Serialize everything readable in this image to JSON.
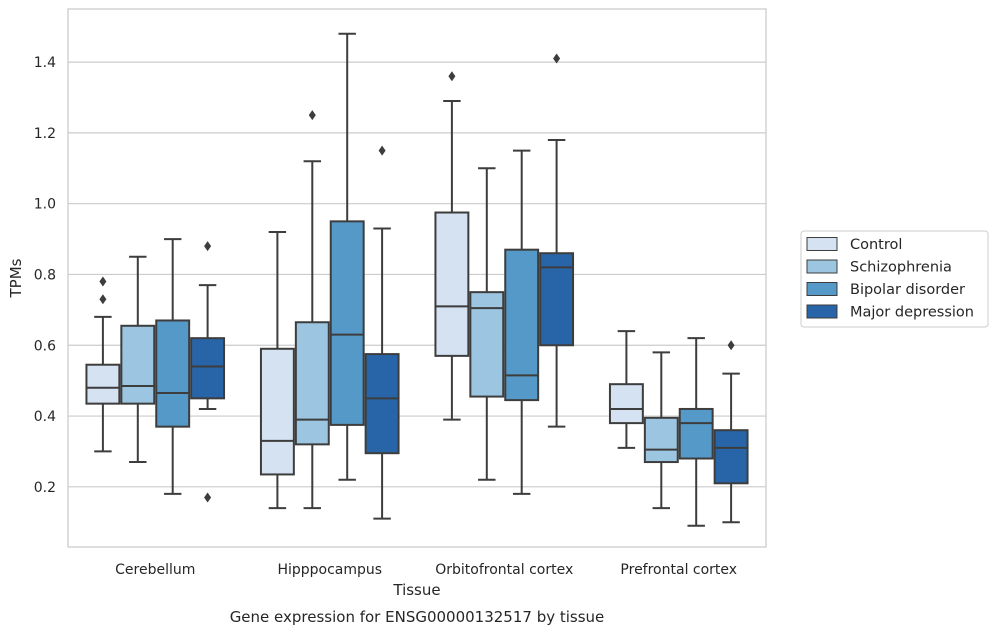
{
  "chart_data": {
    "type": "box",
    "caption": "Gene expression for ENSG00000132517 by tissue",
    "xlabel": "Tissue",
    "ylabel": "TPMs",
    "ylim": [
      0.03,
      1.55
    ],
    "yticks": [
      0.2,
      0.4,
      0.6,
      0.8,
      1.0,
      1.2,
      1.4
    ],
    "ytick_labels": [
      "0.2",
      "0.4",
      "0.6",
      "0.8",
      "1.0",
      "1.2",
      "1.4"
    ],
    "grid": "horizontal",
    "legend_position": "right",
    "categories": [
      "Cerebellum",
      "Hipppocampus",
      "Orbitofrontal cortex",
      "Prefrontal cortex"
    ],
    "series": [
      {
        "name": "Control",
        "color": "#d4e2f1",
        "boxes": [
          {
            "whislo": 0.3,
            "q1": 0.435,
            "med": 0.48,
            "q3": 0.545,
            "whishi": 0.68,
            "fliers": [
              0.73,
              0.78
            ]
          },
          {
            "whislo": 0.14,
            "q1": 0.235,
            "med": 0.33,
            "q3": 0.59,
            "whishi": 0.92,
            "fliers": []
          },
          {
            "whislo": 0.39,
            "q1": 0.57,
            "med": 0.71,
            "q3": 0.975,
            "whishi": 1.29,
            "fliers": [
              1.36
            ]
          },
          {
            "whislo": 0.31,
            "q1": 0.38,
            "med": 0.42,
            "q3": 0.49,
            "whishi": 0.64,
            "fliers": []
          }
        ]
      },
      {
        "name": "Schizophrenia",
        "color": "#9bc5e0",
        "boxes": [
          {
            "whislo": 0.27,
            "q1": 0.435,
            "med": 0.485,
            "q3": 0.655,
            "whishi": 0.85,
            "fliers": []
          },
          {
            "whislo": 0.14,
            "q1": 0.32,
            "med": 0.39,
            "q3": 0.665,
            "whishi": 1.12,
            "fliers": [
              1.25
            ]
          },
          {
            "whislo": 0.22,
            "q1": 0.455,
            "med": 0.705,
            "q3": 0.75,
            "whishi": 1.1,
            "fliers": []
          },
          {
            "whislo": 0.14,
            "q1": 0.27,
            "med": 0.305,
            "q3": 0.395,
            "whishi": 0.58,
            "fliers": []
          }
        ]
      },
      {
        "name": "Bipolar disorder",
        "color": "#5599c8",
        "boxes": [
          {
            "whislo": 0.18,
            "q1": 0.37,
            "med": 0.465,
            "q3": 0.67,
            "whishi": 0.9,
            "fliers": []
          },
          {
            "whislo": 0.22,
            "q1": 0.375,
            "med": 0.63,
            "q3": 0.95,
            "whishi": 1.48,
            "fliers": []
          },
          {
            "whislo": 0.18,
            "q1": 0.445,
            "med": 0.515,
            "q3": 0.87,
            "whishi": 1.15,
            "fliers": []
          },
          {
            "whislo": 0.09,
            "q1": 0.28,
            "med": 0.38,
            "q3": 0.42,
            "whishi": 0.62,
            "fliers": []
          }
        ]
      },
      {
        "name": "Major depression",
        "color": "#2765a8",
        "boxes": [
          {
            "whislo": 0.42,
            "q1": 0.45,
            "med": 0.54,
            "q3": 0.62,
            "whishi": 0.77,
            "fliers": [
              0.17,
              0.88
            ]
          },
          {
            "whislo": 0.11,
            "q1": 0.295,
            "med": 0.45,
            "q3": 0.575,
            "whishi": 0.93,
            "fliers": [
              1.15
            ]
          },
          {
            "whislo": 0.37,
            "q1": 0.6,
            "med": 0.82,
            "q3": 0.86,
            "whishi": 1.18,
            "fliers": [
              1.41
            ]
          },
          {
            "whislo": 0.1,
            "q1": 0.21,
            "med": 0.31,
            "q3": 0.36,
            "whishi": 0.52,
            "fliers": [
              0.6
            ]
          }
        ]
      }
    ]
  }
}
